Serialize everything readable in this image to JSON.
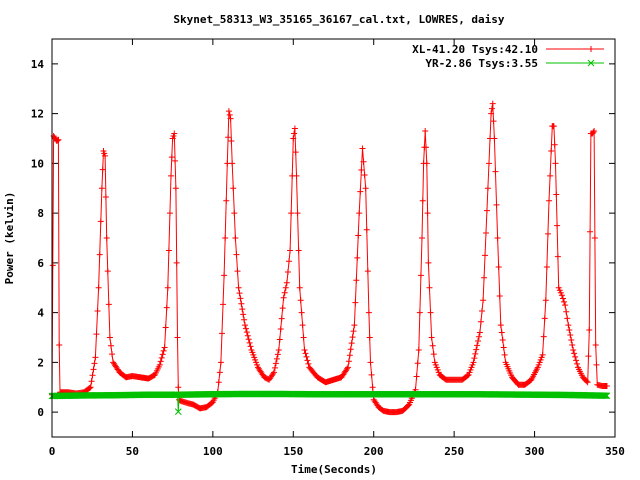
{
  "chart_data": {
    "type": "line",
    "title": "Skynet_58313_W3_35165_36167_cal.txt, LOWRES, daisy",
    "xlabel": "Time(Seconds)",
    "ylabel": "Power (kelvin)",
    "xlim": [
      0,
      350
    ],
    "ylim": [
      -1,
      15
    ],
    "xticks": [
      "0",
      "50",
      "100",
      "150",
      "200",
      "250",
      "300",
      "350"
    ],
    "yticks": [
      "0",
      "2",
      "4",
      "6",
      "8",
      "10",
      "12",
      "14"
    ],
    "legend_position": "top-right",
    "series": [
      {
        "name": "XL-41.20 Tsys:42.10",
        "color": "#ff0000",
        "marker": "plus",
        "points": [
          [
            0,
            0.7
          ],
          [
            1,
            11.1
          ],
          [
            2,
            11.0
          ],
          [
            3,
            10.9
          ],
          [
            4,
            10.95
          ],
          [
            4.5,
            2.7
          ],
          [
            5,
            0.8
          ],
          [
            10,
            0.8
          ],
          [
            15,
            0.75
          ],
          [
            20,
            0.8
          ],
          [
            24,
            1.0
          ],
          [
            27,
            2.2
          ],
          [
            29,
            5.0
          ],
          [
            31,
            9.0
          ],
          [
            32,
            10.5
          ],
          [
            33,
            10.3
          ],
          [
            34,
            7.0
          ],
          [
            36,
            3.0
          ],
          [
            38,
            2.0
          ],
          [
            42,
            1.6
          ],
          [
            46,
            1.4
          ],
          [
            50,
            1.45
          ],
          [
            55,
            1.4
          ],
          [
            60,
            1.35
          ],
          [
            64,
            1.5
          ],
          [
            67,
            1.9
          ],
          [
            70,
            2.6
          ],
          [
            72,
            5.0
          ],
          [
            74,
            9.5
          ],
          [
            75,
            11.0
          ],
          [
            76,
            11.2
          ],
          [
            77,
            9.0
          ],
          [
            78,
            3.0
          ],
          [
            78.5,
            1.0
          ],
          [
            79,
            0.5
          ],
          [
            80,
            0.45
          ],
          [
            85,
            0.35
          ],
          [
            88,
            0.3
          ],
          [
            92,
            0.15
          ],
          [
            96,
            0.2
          ],
          [
            100,
            0.4
          ],
          [
            103,
            0.8
          ],
          [
            105,
            2.0
          ],
          [
            107,
            5.5
          ],
          [
            109,
            10.0
          ],
          [
            110,
            12.1
          ],
          [
            111,
            11.8
          ],
          [
            112,
            10.0
          ],
          [
            114,
            7.0
          ],
          [
            116,
            5.0
          ],
          [
            120,
            3.5
          ],
          [
            124,
            2.5
          ],
          [
            128,
            1.8
          ],
          [
            132,
            1.4
          ],
          [
            135,
            1.3
          ],
          [
            138,
            1.6
          ],
          [
            141,
            2.5
          ],
          [
            144,
            4.6
          ],
          [
            146,
            5.2
          ],
          [
            148,
            6.5
          ],
          [
            150,
            11.0
          ],
          [
            151,
            11.4
          ],
          [
            152,
            9.5
          ],
          [
            154,
            5.0
          ],
          [
            157,
            2.5
          ],
          [
            160,
            1.8
          ],
          [
            165,
            1.4
          ],
          [
            170,
            1.2
          ],
          [
            175,
            1.3
          ],
          [
            180,
            1.4
          ],
          [
            184,
            1.8
          ],
          [
            188,
            3.5
          ],
          [
            191,
            8.0
          ],
          [
            193,
            10.6
          ],
          [
            195,
            9.0
          ],
          [
            197,
            4.0
          ],
          [
            198,
            2.0
          ],
          [
            200,
            0.5
          ],
          [
            203,
            0.2
          ],
          [
            206,
            0.05
          ],
          [
            210,
            0.0
          ],
          [
            214,
            0.0
          ],
          [
            218,
            0.05
          ],
          [
            222,
            0.3
          ],
          [
            226,
            0.9
          ],
          [
            228,
            2.5
          ],
          [
            230,
            7.0
          ],
          [
            231,
            10.0
          ],
          [
            232,
            11.3
          ],
          [
            233,
            10.0
          ],
          [
            234,
            6.0
          ],
          [
            236,
            3.0
          ],
          [
            238,
            2.0
          ],
          [
            241,
            1.5
          ],
          [
            245,
            1.3
          ],
          [
            250,
            1.3
          ],
          [
            255,
            1.3
          ],
          [
            259,
            1.5
          ],
          [
            262,
            2.0
          ],
          [
            266,
            3.2
          ],
          [
            268,
            4.5
          ],
          [
            271,
            9.0
          ],
          [
            273,
            12.0
          ],
          [
            274,
            12.4
          ],
          [
            275,
            11.0
          ],
          [
            277,
            7.0
          ],
          [
            279,
            3.5
          ],
          [
            282,
            2.0
          ],
          [
            286,
            1.4
          ],
          [
            290,
            1.1
          ],
          [
            294,
            1.1
          ],
          [
            298,
            1.3
          ],
          [
            302,
            1.8
          ],
          [
            305,
            2.3
          ],
          [
            307,
            4.5
          ],
          [
            309,
            8.5
          ],
          [
            311,
            11.5
          ],
          [
            312,
            11.5
          ],
          [
            313,
            10.0
          ],
          [
            314,
            7.5
          ],
          [
            315,
            5.0
          ],
          [
            317,
            4.7
          ],
          [
            319,
            4.3
          ],
          [
            321,
            3.5
          ],
          [
            324,
            2.5
          ],
          [
            327,
            1.8
          ],
          [
            330,
            1.4
          ],
          [
            333,
            1.2
          ],
          [
            334,
            3.3
          ],
          [
            335,
            11.2
          ],
          [
            336,
            11.2
          ],
          [
            337,
            11.3
          ],
          [
            338,
            2.7
          ],
          [
            339,
            1.1
          ],
          [
            342,
            1.05
          ],
          [
            345,
            1.05
          ]
        ]
      },
      {
        "name": "YR-2.86 Tsys:3.55",
        "color": "#00c000",
        "marker": "cross",
        "points": [
          [
            0,
            0.65
          ],
          [
            20,
            0.67
          ],
          [
            40,
            0.68
          ],
          [
            60,
            0.7
          ],
          [
            78,
            0.7
          ],
          [
            78.5,
            0.02
          ],
          [
            79,
            0.7
          ],
          [
            100,
            0.72
          ],
          [
            120,
            0.73
          ],
          [
            140,
            0.73
          ],
          [
            160,
            0.72
          ],
          [
            180,
            0.72
          ],
          [
            200,
            0.72
          ],
          [
            220,
            0.72
          ],
          [
            240,
            0.72
          ],
          [
            260,
            0.72
          ],
          [
            280,
            0.71
          ],
          [
            300,
            0.7
          ],
          [
            320,
            0.69
          ],
          [
            345,
            0.66
          ]
        ]
      }
    ]
  }
}
